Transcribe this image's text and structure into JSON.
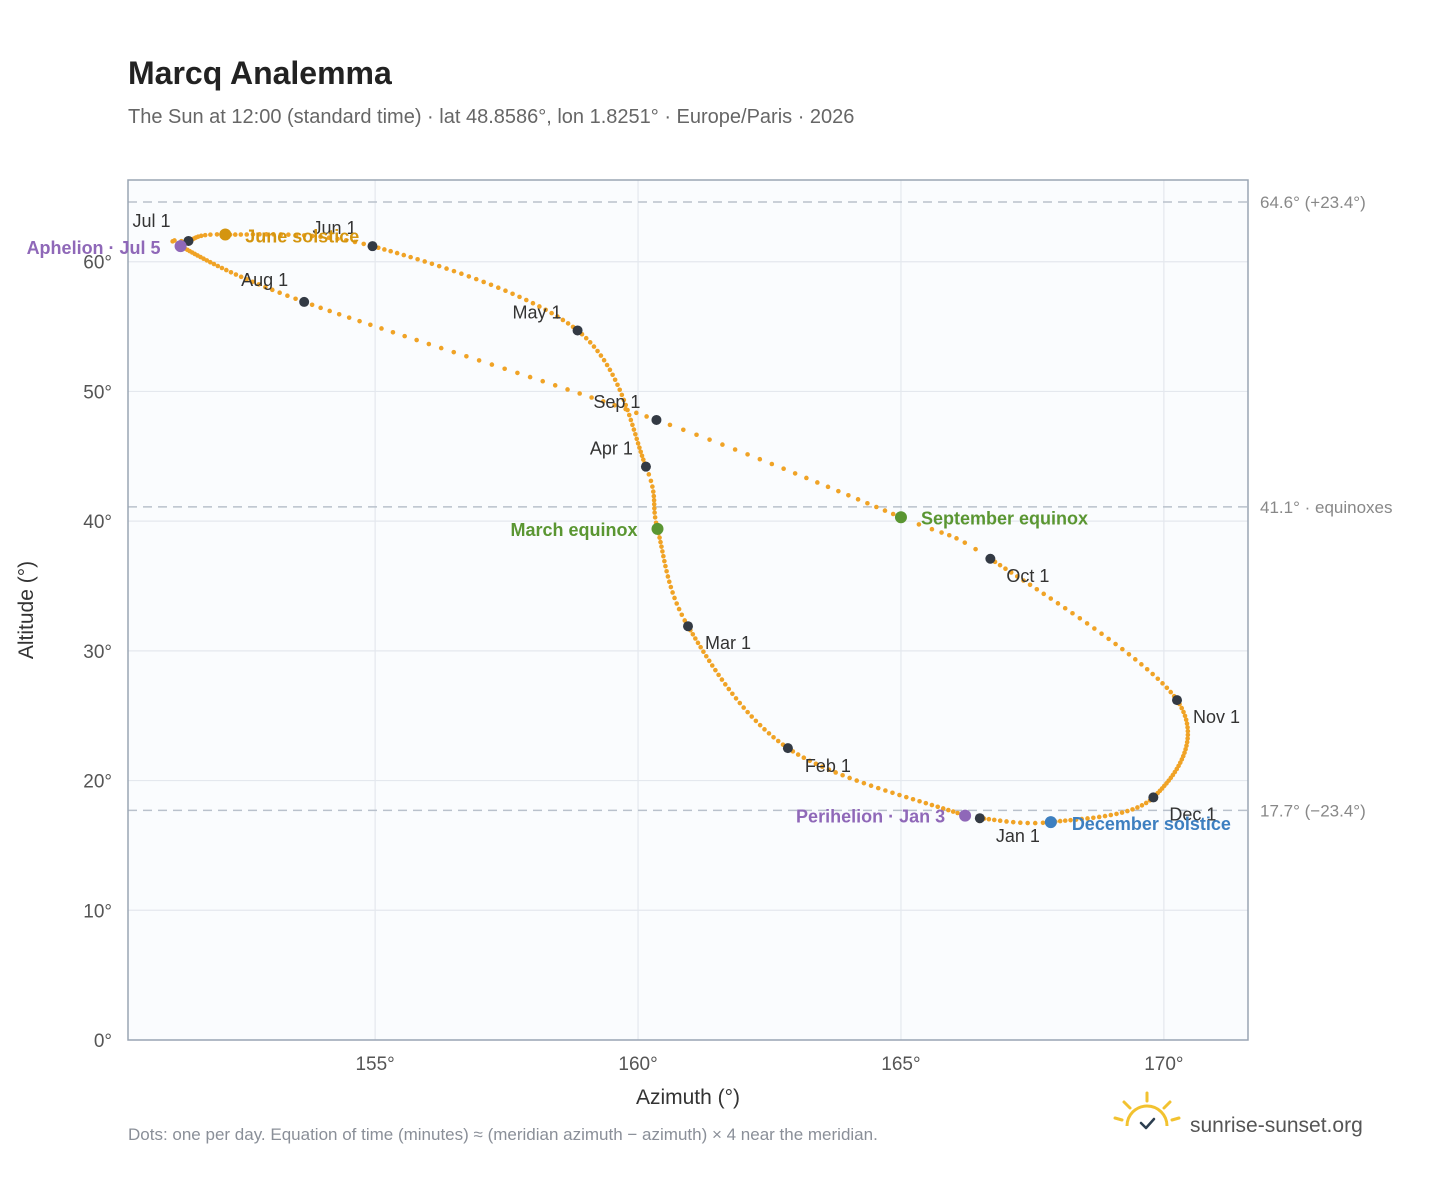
{
  "chart_data": {
    "type": "scatter",
    "title": "Marcq Analemma",
    "subtitle": "The Sun at 12:00 (standard time) · lat 48.8586°, lon 1.8251° · Europe/Paris · 2026",
    "xlabel": "Azimuth (°)",
    "ylabel": "Altitude (°)",
    "xlim": [
      150.3,
      171.6
    ],
    "ylim": [
      0,
      66.3
    ],
    "x_ticks": [
      155,
      160,
      165,
      170
    ],
    "x_tick_labels": [
      "155°",
      "160°",
      "165°",
      "170°"
    ],
    "y_ticks": [
      0,
      10,
      20,
      30,
      40,
      50,
      60
    ],
    "y_tick_labels": [
      "0°",
      "10°",
      "20°",
      "30°",
      "40°",
      "50°",
      "60°"
    ],
    "grid": true,
    "curve_color": "#f0a326",
    "dot_note": "one per day",
    "path_keypoints": [
      {
        "date": "Jan 1",
        "x": 166.5,
        "y": 17.1
      },
      {
        "date": "Jan 3",
        "x": 166.22,
        "y": 17.3
      },
      {
        "date": "Feb 1",
        "x": 162.85,
        "y": 22.5
      },
      {
        "date": "Mar 1",
        "x": 160.95,
        "y": 31.9
      },
      {
        "date": "Mar 20",
        "x": 160.37,
        "y": 39.4
      },
      {
        "date": "Apr 1",
        "x": 160.15,
        "y": 44.2
      },
      {
        "date": "May 1",
        "x": 158.85,
        "y": 54.7
      },
      {
        "date": "Jun 1",
        "x": 154.95,
        "y": 61.2
      },
      {
        "date": "Jun 21",
        "x": 152.15,
        "y": 62.1
      },
      {
        "date": "Jul 1",
        "x": 151.45,
        "y": 61.6
      },
      {
        "date": "Jul 5",
        "x": 151.3,
        "y": 61.2
      },
      {
        "date": "Aug 1",
        "x": 153.65,
        "y": 56.9
      },
      {
        "date": "Sep 1",
        "x": 160.35,
        "y": 47.8
      },
      {
        "date": "Sep 23",
        "x": 165.0,
        "y": 40.3
      },
      {
        "date": "Oct 1",
        "x": 166.7,
        "y": 37.1
      },
      {
        "date": "Nov 1",
        "x": 170.25,
        "y": 26.2
      },
      {
        "date": "Dec 1",
        "x": 169.8,
        "y": 18.7
      },
      {
        "date": "Dec 21",
        "x": 167.85,
        "y": 16.8
      }
    ],
    "month_markers": [
      {
        "label": "Jan 1",
        "x": 166.5,
        "y": 17.1
      },
      {
        "label": "Feb 1",
        "x": 162.85,
        "y": 22.5
      },
      {
        "label": "Mar 1",
        "x": 160.95,
        "y": 31.9
      },
      {
        "label": "Apr 1",
        "x": 160.15,
        "y": 44.2
      },
      {
        "label": "May 1",
        "x": 158.85,
        "y": 54.7
      },
      {
        "label": "Jun 1",
        "x": 154.95,
        "y": 61.2
      },
      {
        "label": "Jul 1",
        "x": 151.45,
        "y": 61.6
      },
      {
        "label": "Aug 1",
        "x": 153.65,
        "y": 56.9
      },
      {
        "label": "Sep 1",
        "x": 160.35,
        "y": 47.8
      },
      {
        "label": "Oct 1",
        "x": 166.7,
        "y": 37.1
      },
      {
        "label": "Nov 1",
        "x": 170.25,
        "y": 26.2
      },
      {
        "label": "Dec 1",
        "x": 169.8,
        "y": 18.7
      }
    ],
    "events": [
      {
        "label": "June solstice",
        "x": 152.15,
        "y": 62.1,
        "color": "#d4950f"
      },
      {
        "label": "Aphelion · Jul 5",
        "x": 151.3,
        "y": 61.2,
        "color": "#8f68b8"
      },
      {
        "label": "March equinox",
        "x": 160.37,
        "y": 39.4,
        "color": "#5a9632"
      },
      {
        "label": "September equinox",
        "x": 165.0,
        "y": 40.3,
        "color": "#5a9632"
      },
      {
        "label": "Perihelion · Jan 3",
        "x": 166.22,
        "y": 17.3,
        "color": "#8f68b8"
      },
      {
        "label": "December solstice",
        "x": 167.85,
        "y": 16.8,
        "color": "#3d7fc0"
      }
    ],
    "reference_lines": [
      {
        "y": 64.6,
        "label": "64.6° (+23.4°)"
      },
      {
        "y": 41.1,
        "label": "41.1° · equinoxes"
      },
      {
        "y": 17.7,
        "label": "17.7° (−23.4°)"
      }
    ],
    "footnote": "Dots: one per day. Equation of time (minutes) ≈ (meridian azimuth − azimuth) × 4 near the meridian.",
    "brand": "sunrise-sunset.org"
  }
}
